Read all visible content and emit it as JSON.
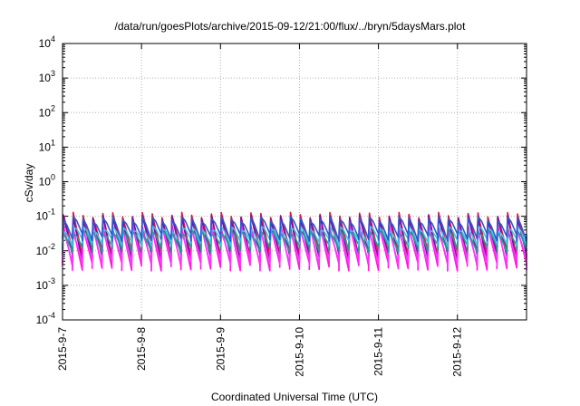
{
  "chart_data": {
    "type": "line",
    "title": "/data/run/goesPlots/archive/2015-09-12/21:00/flux/../bryn/5daysMars.plot",
    "xlabel": "Coordinated Universal Time (UTC)",
    "ylabel": "cSv/day",
    "xlim": [
      "2015-09-07",
      "2015-09-12 21:00"
    ],
    "ylim": [
      0.0001,
      10000
    ],
    "y_scale": "log",
    "grid": true,
    "x_ticks": [
      "2015-9-7",
      "2015-9-8",
      "2015-9-9",
      "2015-9-10",
      "2015-9-11",
      "2015-9-12"
    ],
    "y_ticks": [
      {
        "value": 0.0001,
        "base": "10",
        "exp": "-4"
      },
      {
        "value": 0.001,
        "base": "10",
        "exp": "-3"
      },
      {
        "value": 0.01,
        "base": "10",
        "exp": "-2"
      },
      {
        "value": 0.1,
        "base": "10",
        "exp": "-1"
      },
      {
        "value": 1,
        "base": "10",
        "exp": "0"
      },
      {
        "value": 10,
        "base": "10",
        "exp": "1"
      },
      {
        "value": 100,
        "base": "10",
        "exp": "2"
      },
      {
        "value": 1000,
        "base": "10",
        "exp": "3"
      },
      {
        "value": 10000,
        "base": "10",
        "exp": "4"
      }
    ],
    "pattern": {
      "period_hours": 3,
      "description": "repeating sawtooth: sharp rise at start of each interval, decay over remainder",
      "series": [
        {
          "color": "#e8153c",
          "peak": 0.11,
          "trough": 0.009
        },
        {
          "color": "#7a0ea6",
          "peak": 0.09,
          "trough": 0.0065
        },
        {
          "color": "#ff1ad9",
          "peak": 0.05,
          "trough": 0.0035
        },
        {
          "color": "#ff33ff",
          "peak": 0.04,
          "trough": 0.005
        },
        {
          "color": "#1f9e89",
          "peak": 0.035,
          "trough": 0.012
        },
        {
          "color": "#33c9e0",
          "peak": 0.045,
          "trough": 0.018
        },
        {
          "color": "#2b58d6",
          "peak": 0.085,
          "trough": 0.025
        }
      ]
    }
  }
}
